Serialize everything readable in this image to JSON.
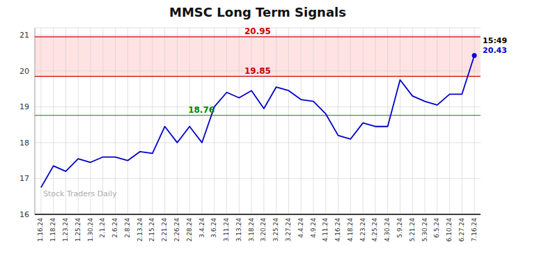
{
  "chart_data": {
    "type": "line",
    "title": "MMSC Long Term Signals",
    "categories": [
      "1.16.24",
      "1.18.24",
      "1.23.24",
      "1.25.24",
      "1.30.24",
      "2.1.24",
      "2.6.24",
      "2.8.24",
      "2.13.24",
      "2.15.24",
      "2.21.24",
      "2.26.24",
      "2.28.24",
      "3.4.24",
      "3.6.24",
      "3.11.24",
      "3.13.24",
      "3.18.24",
      "3.20.24",
      "3.25.24",
      "3.27.24",
      "4.4.24",
      "4.9.24",
      "4.11.24",
      "4.16.24",
      "4.18.24",
      "4.23.24",
      "4.25.24",
      "4.30.24",
      "5.9.24",
      "5.21.24",
      "5.30.24",
      "6.5.24",
      "6.10.24",
      "6.27.24",
      "7.16.24"
    ],
    "values": [
      16.75,
      17.35,
      17.2,
      17.55,
      17.45,
      17.6,
      17.6,
      17.5,
      17.75,
      17.7,
      18.45,
      18.0,
      18.45,
      18.0,
      19.0,
      19.4,
      19.25,
      19.45,
      18.95,
      19.55,
      19.45,
      19.2,
      19.15,
      18.8,
      18.2,
      18.1,
      18.55,
      18.45,
      18.45,
      19.75,
      19.3,
      19.15,
      19.05,
      19.35,
      19.35,
      20.43
    ],
    "color": "#0000cc",
    "marker": "last",
    "ylim": [
      16,
      21.2
    ],
    "yticks": [
      16,
      17,
      18,
      19,
      20,
      21
    ],
    "grid": true,
    "band": {
      "from": 19.85,
      "to": 20.95,
      "color": "#ffcccc"
    },
    "reference_lines": [
      {
        "value": 20.95,
        "label": "20.95",
        "color": "#cc0000"
      },
      {
        "value": 19.85,
        "label": "19.85",
        "color": "#cc0000"
      },
      {
        "value": 18.76,
        "label": "18.76",
        "color": "#008800"
      }
    ],
    "last_label": {
      "time": "15:49",
      "value": 20.43
    },
    "watermark": "Stock Traders Daily"
  }
}
